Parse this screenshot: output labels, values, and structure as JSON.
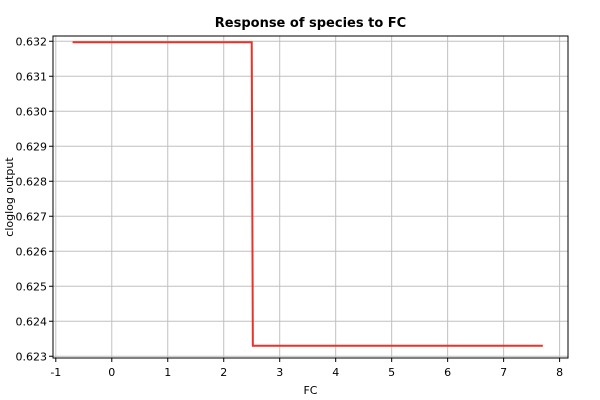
{
  "chart_data": {
    "type": "line",
    "title": "Response of species to FC",
    "xlabel": "FC",
    "ylabel": "cloglog output",
    "xlim": [
      -1.05,
      8.15
    ],
    "ylim": [
      0.62295,
      0.63215
    ],
    "x_ticks": [
      -1,
      0,
      1,
      2,
      3,
      4,
      5,
      6,
      7,
      8
    ],
    "y_ticks": [
      0.623,
      0.624,
      0.625,
      0.626,
      0.627,
      0.628,
      0.629,
      0.63,
      0.631,
      0.632
    ],
    "grid": true,
    "series": [
      {
        "color": "#e8322a",
        "points": [
          [
            -0.7,
            0.63197
          ],
          [
            2.5,
            0.63197
          ],
          [
            2.52,
            0.6233
          ],
          [
            7.7,
            0.6233
          ]
        ]
      }
    ]
  }
}
